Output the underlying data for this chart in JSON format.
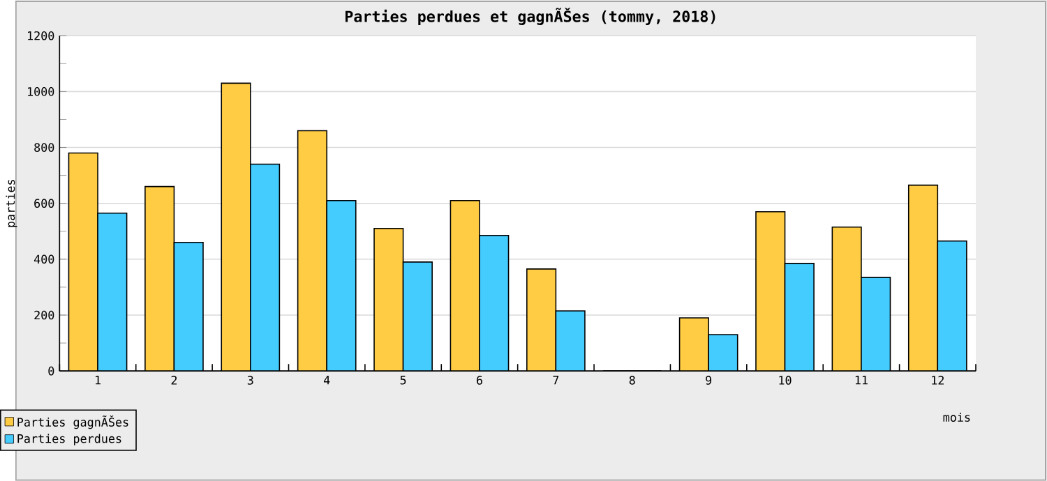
{
  "chart_data": {
    "type": "bar",
    "title": "Parties perdues et gagnÃŠes (tommy, 2018)",
    "xlabel": "mois",
    "ylabel": "parties",
    "categories": [
      "1",
      "2",
      "3",
      "4",
      "5",
      "6",
      "7",
      "8",
      "9",
      "10",
      "11",
      "12"
    ],
    "series": [
      {
        "name": "Parties gagnÃŠes",
        "color": "#ffcc44",
        "values": [
          780,
          660,
          1030,
          860,
          510,
          610,
          365,
          0,
          190,
          570,
          515,
          665
        ]
      },
      {
        "name": "Parties perdues",
        "color": "#44ccff",
        "values": [
          565,
          460,
          740,
          610,
          390,
          485,
          215,
          0,
          130,
          385,
          335,
          465
        ]
      }
    ],
    "ylim": [
      0,
      1200
    ],
    "yticks": [
      0,
      200,
      400,
      600,
      800,
      1000,
      1200
    ],
    "grid": "y",
    "legend": "bottom left"
  }
}
